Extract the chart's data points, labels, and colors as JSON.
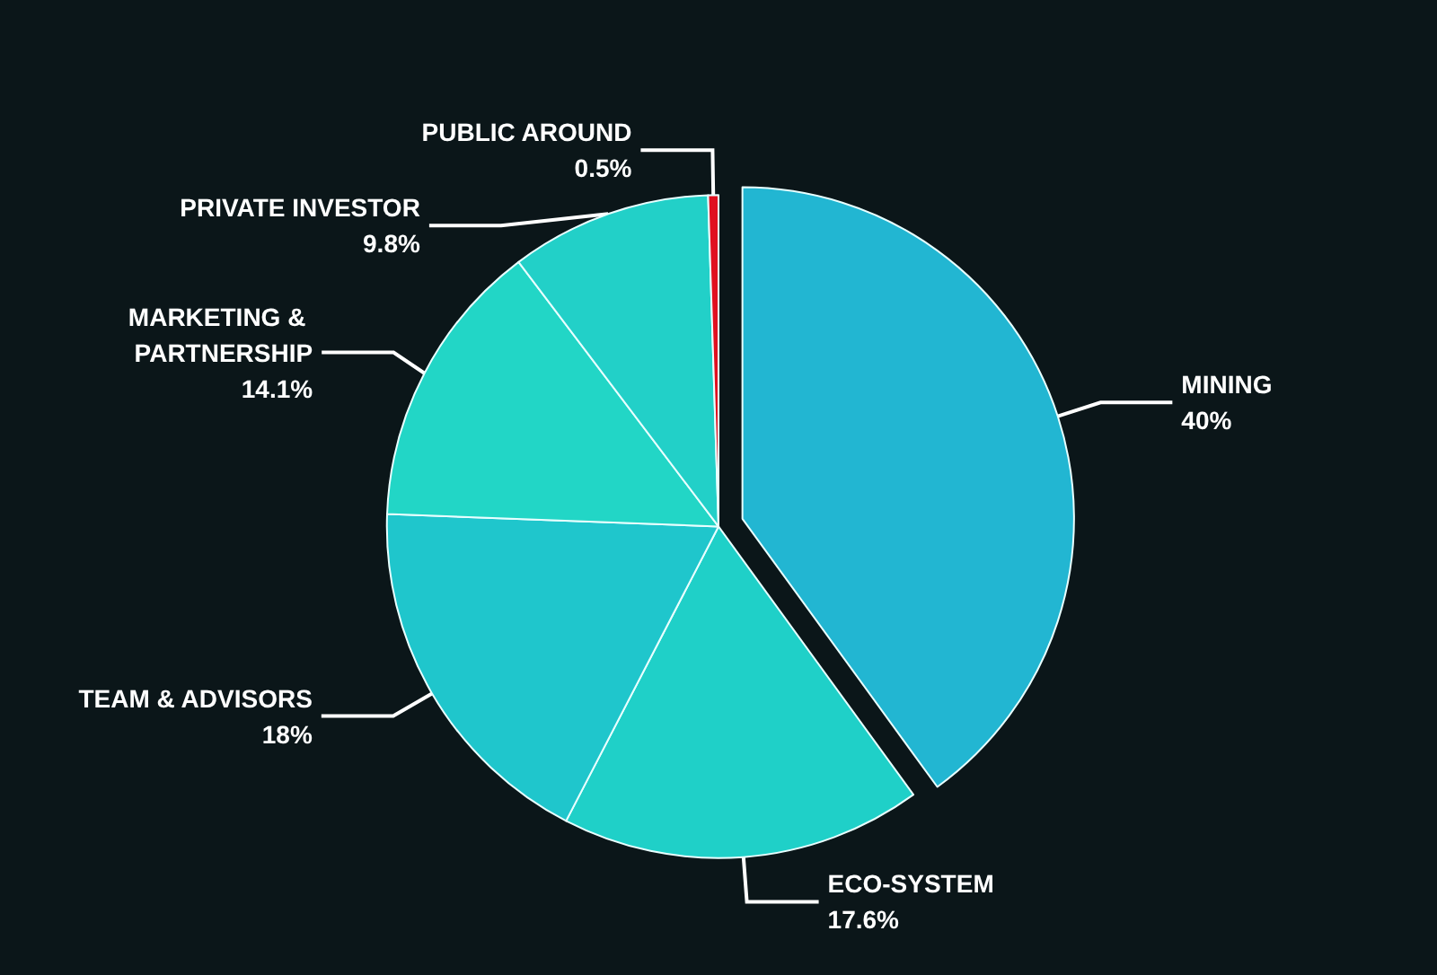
{
  "chart_data": {
    "type": "pie",
    "categories": [
      "MINING",
      "ECO-SYSTEM",
      "TEAM & ADVISORS",
      "MARKETING & PARTNERSHIP",
      "PRIVATE INVESTOR",
      "PUBLIC AROUND"
    ],
    "values": [
      40,
      17.6,
      18,
      14.1,
      9.8,
      0.5
    ],
    "value_labels": [
      "40%",
      "17.6%",
      "18%",
      "14.1%",
      "9.8%",
      "0.5%"
    ],
    "colors": [
      "#22b6d2",
      "#1fd0c8",
      "#1fc6cc",
      "#22d6c6",
      "#22d0c8",
      "#e01020"
    ]
  }
}
